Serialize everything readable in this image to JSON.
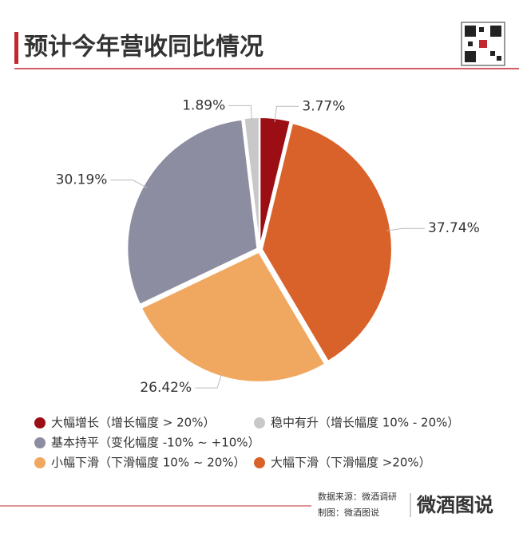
{
  "header": {
    "title": "预计今年营收同比情况"
  },
  "chart_data": {
    "type": "pie",
    "categories": [
      "大幅增长（增长幅度 > 20%）",
      "大幅下滑（下滑幅度 >20%）",
      "小幅下滑（下滑幅度 10% ~ 20%）",
      "基本持平（变化幅度 -10% ~ +10%）",
      "稳中有升（增长幅度 10% - 20%）"
    ],
    "values": [
      3.77,
      37.74,
      26.42,
      30.19,
      1.89
    ],
    "value_labels": [
      "3.77%",
      "37.74%",
      "26.42%",
      "30.19%",
      "1.89%"
    ],
    "colors": [
      "#9b0f14",
      "#d9622b",
      "#f0a860",
      "#8c8da0",
      "#c8c8c8"
    ]
  },
  "footer": {
    "source": "数据来源：微酒调研",
    "maker": "制图：微酒图说",
    "logo": "微酒图说"
  }
}
